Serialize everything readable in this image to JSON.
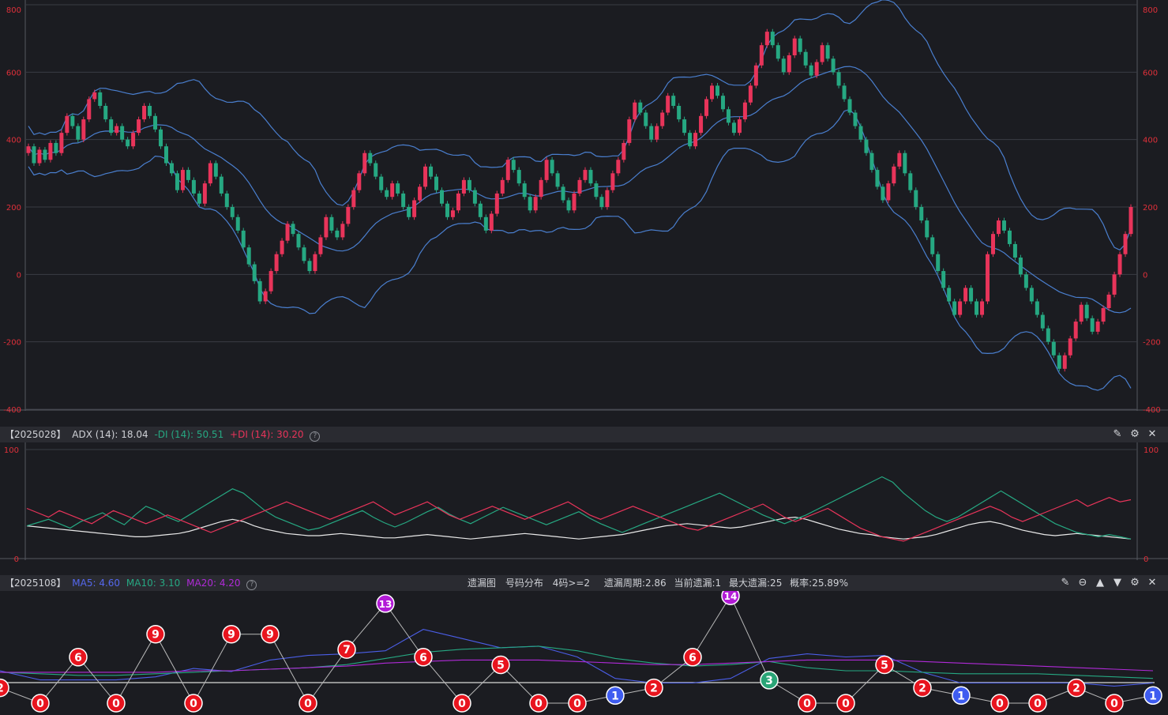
{
  "colors": {
    "bg": "#1b1c21",
    "grid": "#3a3c44",
    "axis": "#e0303a",
    "up": "#e8345a",
    "down": "#26a882",
    "band": "#4a7fcf",
    "adx": "#e8e8e8",
    "minus_di": "#26a882",
    "plus_di": "#e8345a",
    "ma5": "#4b5ee8",
    "ma10": "#26a882",
    "ma20": "#b02ad8",
    "red_ball": "#e8141e",
    "blue_ball": "#3e5cf0",
    "green_ball": "#2aa577",
    "purple_ball": "#b21bd6"
  },
  "main_chart": {
    "y_ticks": [
      "800",
      "600",
      "400",
      "200",
      "0",
      "-200",
      "-400"
    ],
    "ylim": [
      -400,
      800
    ]
  },
  "adx_panel": {
    "period": "【2025028】",
    "adx_label": "ADX (14): 18.04",
    "minus_di_label": "-DI (14): 50.51",
    "plus_di_label": "+DI (14): 30.20",
    "help": "?",
    "y_top": "100",
    "y_bottom": "0",
    "icons": [
      "pin-icon",
      "settings-icon",
      "close-icon"
    ]
  },
  "miss_panel": {
    "period": "【2025108】",
    "ma5_label": "MA5: 4.60",
    "ma10_label": "MA10: 3.10",
    "ma20_label": "MA20: 4.20",
    "help": "?",
    "title": "遗漏图",
    "dist": "号码分布",
    "cond": "4码>=2",
    "cycle": "遗漏周期:2.86",
    "current": "当前遗漏:1",
    "max": "最大遗漏:25",
    "prob": "概率:25.89%",
    "icons": [
      "pin-icon",
      "collapse-icon",
      "up-icon",
      "down-icon",
      "settings-icon",
      "close-icon"
    ]
  },
  "chart_data": [
    {
      "type": "candlestick",
      "ylim": [
        -400,
        800
      ],
      "series": [
        {
          "name": "close",
          "values": [
            380,
            330,
            370,
            340,
            390,
            360,
            420,
            470,
            440,
            400,
            460,
            520,
            540,
            500,
            460,
            420,
            440,
            400,
            380,
            420,
            460,
            500,
            470,
            430,
            380,
            330,
            300,
            250,
            310,
            280,
            240,
            210,
            270,
            330,
            290,
            240,
            200,
            170,
            130,
            80,
            30,
            -20,
            -80,
            -50,
            10,
            60,
            100,
            150,
            120,
            80,
            40,
            10,
            60,
            110,
            170,
            130,
            110,
            150,
            200,
            250,
            300,
            360,
            330,
            290,
            250,
            230,
            270,
            240,
            200,
            170,
            220,
            260,
            320,
            290,
            250,
            210,
            170,
            190,
            240,
            280,
            250,
            210,
            170,
            130,
            180,
            240,
            280,
            340,
            310,
            270,
            230,
            190,
            230,
            280,
            340,
            300,
            260,
            220,
            190,
            240,
            280,
            310,
            270,
            230,
            200,
            250,
            300,
            340,
            390,
            460,
            510,
            480,
            440,
            400,
            440,
            480,
            530,
            500,
            460,
            420,
            380,
            420,
            470,
            520,
            560,
            530,
            490,
            450,
            420,
            460,
            510,
            560,
            620,
            680,
            720,
            680,
            640,
            600,
            650,
            700,
            660,
            620,
            590,
            630,
            680,
            640,
            600,
            560,
            520,
            480,
            440,
            400,
            360,
            310,
            260,
            220,
            270,
            320,
            360,
            300,
            250,
            200,
            160,
            110,
            60,
            10,
            -40,
            -80,
            -120,
            -80,
            -40,
            -80,
            -120,
            -80,
            60,
            120,
            160,
            130,
            90,
            50,
            0,
            -40,
            -80,
            -120,
            -160,
            -200,
            -240,
            -280,
            -240,
            -190,
            -140,
            -90,
            -130,
            -170,
            -140,
            -100,
            -60,
            0,
            60,
            120,
            200
          ]
        }
      ]
    },
    {
      "type": "line",
      "ylim": [
        0,
        100
      ],
      "series": [
        {
          "name": "ADX (14)",
          "values": [
            30,
            29,
            28,
            27,
            26,
            25,
            24,
            23,
            22,
            21,
            20,
            20,
            21,
            22,
            23,
            25,
            28,
            31,
            34,
            36,
            34,
            30,
            27,
            25,
            23,
            22,
            21,
            21,
            22,
            23,
            22,
            21,
            20,
            19,
            19,
            20,
            21,
            22,
            21,
            20,
            19,
            18,
            19,
            20,
            21,
            22,
            23,
            22,
            21,
            20,
            19,
            18,
            19,
            20,
            21,
            22,
            24,
            26,
            28,
            30,
            31,
            32,
            31,
            30,
            29,
            28,
            29,
            31,
            33,
            35,
            37,
            38,
            36,
            33,
            30,
            27,
            25,
            23,
            22,
            20,
            19,
            18,
            19,
            20,
            22,
            25,
            28,
            31,
            33,
            34,
            32,
            29,
            26,
            24,
            22,
            21,
            22,
            23,
            22,
            21,
            20,
            19,
            18
          ]
        },
        {
          "name": "-DI (14)",
          "values": [
            30,
            33,
            36,
            32,
            28,
            34,
            38,
            42,
            36,
            31,
            40,
            48,
            44,
            38,
            34,
            40,
            46,
            52,
            58,
            64,
            60,
            52,
            44,
            38,
            34,
            30,
            26,
            28,
            32,
            36,
            40,
            44,
            38,
            33,
            29,
            33,
            38,
            43,
            47,
            41,
            36,
            32,
            37,
            42,
            47,
            43,
            39,
            35,
            31,
            35,
            39,
            43,
            37,
            32,
            28,
            24,
            28,
            32,
            36,
            40,
            44,
            48,
            52,
            56,
            60,
            55,
            50,
            45,
            40,
            36,
            32,
            36,
            40,
            45,
            50,
            55,
            60,
            65,
            70,
            75,
            70,
            60,
            52,
            44,
            38,
            34,
            38,
            44,
            50,
            56,
            62,
            56,
            50,
            44,
            38,
            32,
            28,
            24,
            22,
            20,
            22,
            20,
            18
          ]
        },
        {
          "name": "+DI (14)",
          "values": [
            46,
            42,
            38,
            44,
            40,
            36,
            32,
            38,
            44,
            40,
            36,
            32,
            36,
            40,
            36,
            32,
            28,
            24,
            28,
            32,
            36,
            40,
            44,
            48,
            52,
            48,
            44,
            40,
            36,
            40,
            44,
            48,
            52,
            46,
            40,
            44,
            48,
            52,
            46,
            40,
            36,
            40,
            44,
            48,
            44,
            40,
            36,
            40,
            44,
            48,
            52,
            46,
            40,
            36,
            40,
            44,
            48,
            44,
            40,
            36,
            32,
            28,
            26,
            30,
            34,
            38,
            42,
            46,
            50,
            44,
            38,
            34,
            38,
            42,
            46,
            40,
            34,
            28,
            24,
            20,
            18,
            16,
            20,
            24,
            28,
            32,
            36,
            40,
            44,
            48,
            44,
            38,
            34,
            38,
            42,
            46,
            50,
            54,
            48,
            52,
            56,
            52,
            54
          ]
        }
      ]
    },
    {
      "type": "line",
      "series": [
        {
          "name": "遗漏",
          "points": [
            [
              0,
              2
            ],
            [
              51,
              0
            ],
            [
              99,
              6
            ],
            [
              147,
              0
            ],
            [
              197,
              9
            ],
            [
              245,
              0
            ],
            [
              293,
              9
            ],
            [
              342,
              9
            ],
            [
              390,
              0
            ],
            [
              439,
              7
            ],
            [
              488,
              13
            ],
            [
              536,
              6
            ],
            [
              585,
              0
            ],
            [
              634,
              5
            ],
            [
              682,
              0
            ],
            [
              731,
              0
            ],
            [
              779,
              1
            ],
            [
              828,
              2
            ],
            [
              877,
              6
            ],
            [
              925,
              14
            ],
            [
              974,
              3
            ],
            [
              1022,
              0
            ],
            [
              1071,
              0
            ],
            [
              1120,
              5
            ],
            [
              1168,
              2
            ],
            [
              1217,
              1
            ],
            [
              1266,
              0
            ],
            [
              1314,
              0
            ],
            [
              1363,
              2
            ],
            [
              1411,
              0
            ],
            [
              1460,
              1
            ]
          ]
        },
        {
          "name": "MA5",
          "values": [
            3.2,
            2.0,
            2.0,
            2.0,
            2.4,
            3.5,
            3.1,
            4.6,
            5.2,
            5.4,
            5.8,
            8.6,
            7.4,
            6.2,
            6.4,
            5.0,
            2.2,
            1.6,
            1.6,
            2.2,
            4.8,
            5.4,
            5.0,
            5.2,
            3.0,
            1.6,
            1.6,
            1.6,
            1.6,
            1.2,
            1.6
          ]
        },
        {
          "name": "MA10",
          "values": [
            3.0,
            2.8,
            2.6,
            2.6,
            2.8,
            3.0,
            3.2,
            3.4,
            3.6,
            4.0,
            4.8,
            5.6,
            6.0,
            6.2,
            6.4,
            5.8,
            4.8,
            4.2,
            3.8,
            4.0,
            4.4,
            3.6,
            3.2,
            3.2,
            3.0,
            2.8,
            2.8,
            2.8,
            2.6,
            2.4,
            2.2
          ]
        },
        {
          "name": "MA20",
          "values": [
            3.0,
            3.0,
            3.0,
            3.0,
            3.0,
            3.2,
            3.2,
            3.4,
            3.6,
            3.8,
            4.2,
            4.4,
            4.6,
            4.6,
            4.6,
            4.4,
            4.2,
            4.0,
            4.0,
            4.2,
            4.4,
            4.6,
            4.6,
            4.6,
            4.4,
            4.2,
            4.0,
            3.8,
            3.6,
            3.4,
            3.2
          ]
        }
      ]
    }
  ]
}
